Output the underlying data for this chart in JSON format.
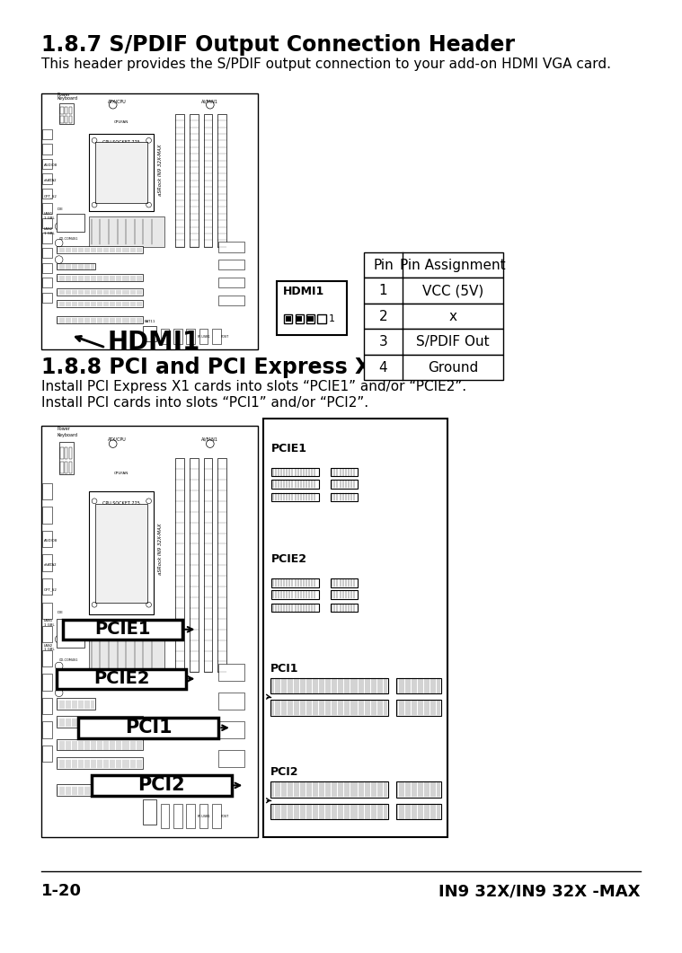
{
  "bg_color": "#ffffff",
  "title1": "1.8.7 S/PDIF Output Connection Header",
  "desc1": "This header provides the S/PDIF output connection to your add-on HDMI VGA card.",
  "title2": "1.8.8 PCI and PCI Express X1 Slot",
  "desc2a": "Install PCI Express X1 cards into slots “PCIE1” and/or “PCIE2”.",
  "desc2b": "Install PCI cards into slots “PCI1” and/or “PCI2”.",
  "table_headers": [
    "Pin",
    "Pin Assignment"
  ],
  "table_rows": [
    [
      "1",
      "VCC (5V)"
    ],
    [
      "2",
      "x"
    ],
    [
      "3",
      "S/PDIF Out"
    ],
    [
      "4",
      "Ground"
    ]
  ],
  "hdmi_label": "HDMI1",
  "footer_left": "1-20",
  "footer_right": "IN9 32X/IN9 32X -MAX"
}
